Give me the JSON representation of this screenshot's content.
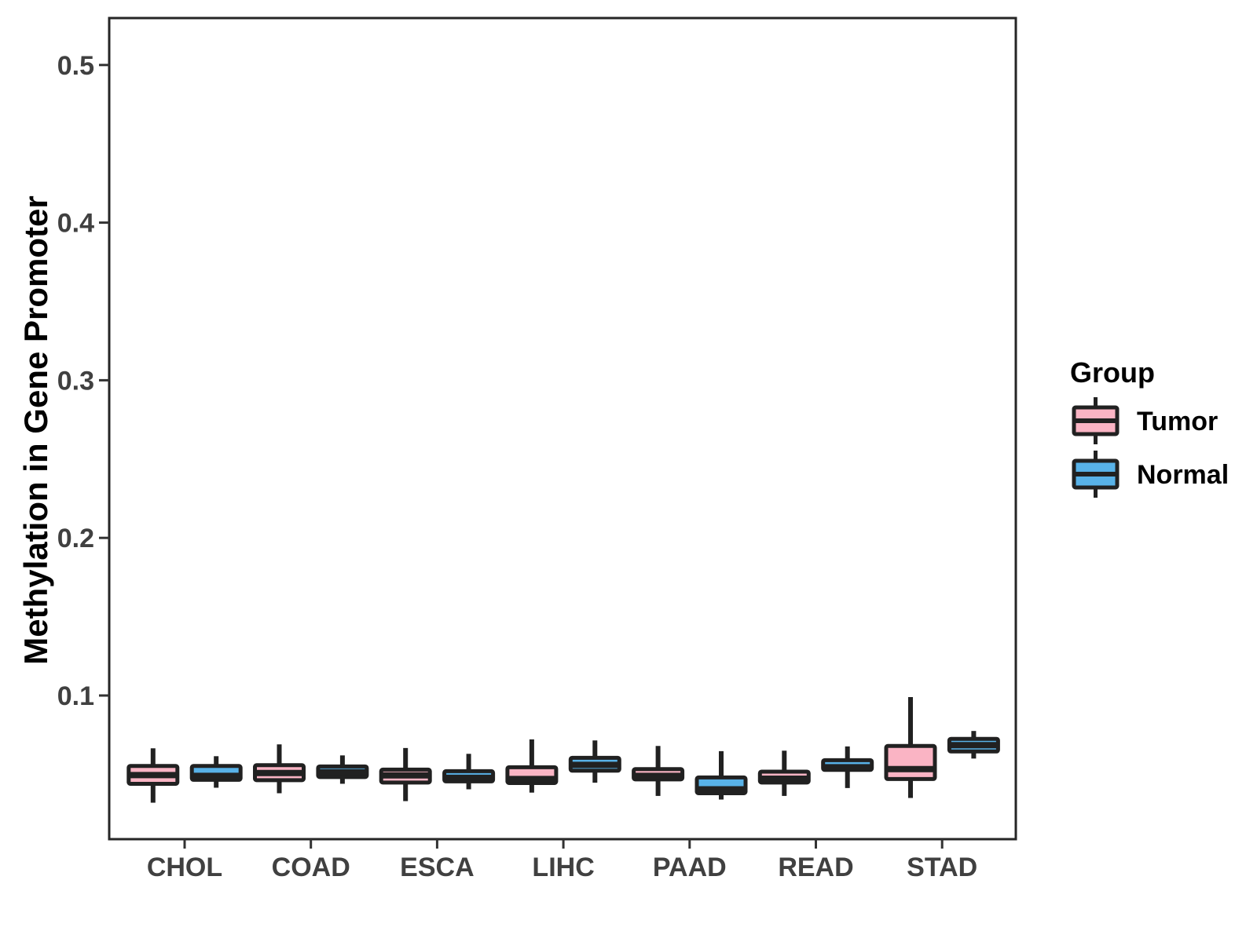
{
  "chart_data": {
    "type": "boxplot",
    "title": "",
    "xlabel": "",
    "ylabel": "Methylation in Gene Promoter",
    "categories": [
      "CHOL",
      "COAD",
      "ESCA",
      "LIHC",
      "PAAD",
      "READ",
      "STAD"
    ],
    "y_ticks": [
      "0.5",
      "0.4",
      "0.3",
      "0.2",
      "0.1"
    ],
    "y_tick_values": [
      0.5,
      0.4,
      0.3,
      0.2,
      0.1
    ],
    "ylim": [
      0.009,
      0.53
    ],
    "grid": "off",
    "legend": {
      "title": "Group",
      "position": "right",
      "entries": [
        {
          "label": "Tumor",
          "color": "#FAB4C4"
        },
        {
          "label": "Normal",
          "color": "#58B2E8"
        }
      ]
    },
    "series": [
      {
        "name": "Tumor",
        "fill": "#FAB4C4",
        "boxes": [
          {
            "category": "CHOL",
            "whisker_low": 0.032,
            "q1": 0.044,
            "median": 0.0495,
            "q3": 0.0553,
            "whisker_high": 0.0665
          },
          {
            "category": "COAD",
            "whisker_low": 0.038,
            "q1": 0.0463,
            "median": 0.0508,
            "q3": 0.0558,
            "whisker_high": 0.069
          },
          {
            "category": "ESCA",
            "whisker_low": 0.033,
            "q1": 0.0448,
            "median": 0.0493,
            "q3": 0.053,
            "whisker_high": 0.0667
          },
          {
            "category": "LIHC",
            "whisker_low": 0.0384,
            "q1": 0.0445,
            "median": 0.047,
            "q3": 0.0545,
            "whisker_high": 0.0722
          },
          {
            "category": "PAAD",
            "whisker_low": 0.0363,
            "q1": 0.0468,
            "median": 0.049,
            "q3": 0.0533,
            "whisker_high": 0.068
          },
          {
            "category": "READ",
            "whisker_low": 0.0363,
            "q1": 0.0448,
            "median": 0.0472,
            "q3": 0.0517,
            "whisker_high": 0.065
          },
          {
            "category": "STAD",
            "whisker_low": 0.035,
            "q1": 0.047,
            "median": 0.0533,
            "q3": 0.068,
            "whisker_high": 0.099
          }
        ]
      },
      {
        "name": "Normal",
        "fill": "#58B2E8",
        "boxes": [
          {
            "category": "CHOL",
            "whisker_low": 0.0415,
            "q1": 0.0465,
            "median": 0.049,
            "q3": 0.0553,
            "whisker_high": 0.0615
          },
          {
            "category": "COAD",
            "whisker_low": 0.044,
            "q1": 0.0483,
            "median": 0.0513,
            "q3": 0.055,
            "whisker_high": 0.062
          },
          {
            "category": "ESCA",
            "whisker_low": 0.0405,
            "q1": 0.0455,
            "median": 0.0478,
            "q3": 0.052,
            "whisker_high": 0.063
          },
          {
            "category": "LIHC",
            "whisker_low": 0.0447,
            "q1": 0.0523,
            "median": 0.056,
            "q3": 0.0605,
            "whisker_high": 0.0715
          },
          {
            "category": "PAAD",
            "whisker_low": 0.034,
            "q1": 0.038,
            "median": 0.0405,
            "q3": 0.048,
            "whisker_high": 0.0647
          },
          {
            "category": "READ",
            "whisker_low": 0.0413,
            "q1": 0.0528,
            "median": 0.0545,
            "q3": 0.059,
            "whisker_high": 0.0677
          },
          {
            "category": "STAD",
            "whisker_low": 0.06,
            "q1": 0.0645,
            "median": 0.0685,
            "q3": 0.0725,
            "whisker_high": 0.0775
          }
        ]
      }
    ],
    "colors": {
      "box_border": "#212121",
      "panel_border": "#262626",
      "tick_mark": "#333333",
      "tick_text": "#404040",
      "axis_title_text": "#000000",
      "background": "#FFFFFF"
    }
  }
}
